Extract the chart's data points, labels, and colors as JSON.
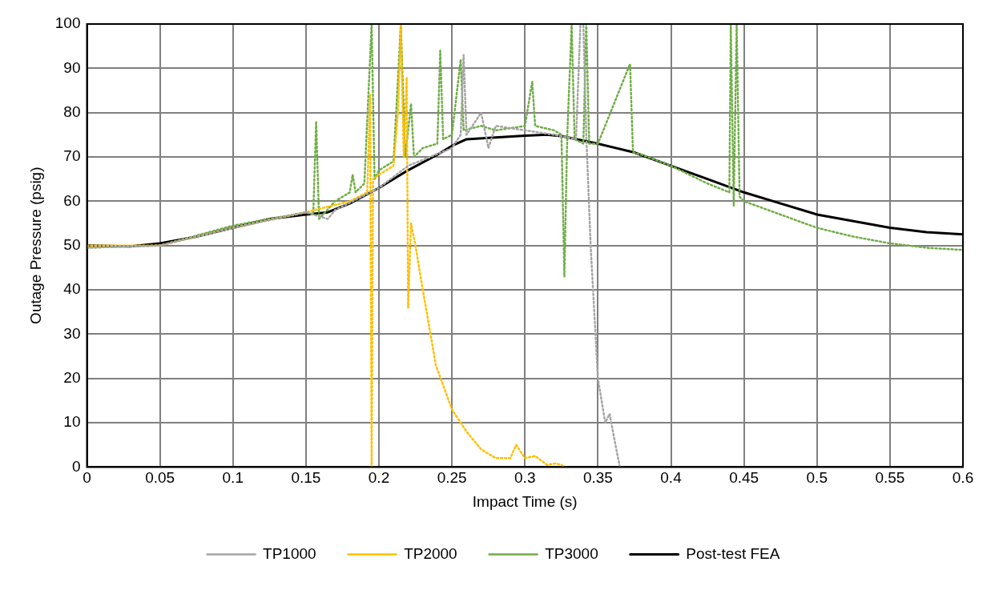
{
  "chart_data": {
    "type": "line",
    "xlabel": "Impact Time (s)",
    "ylabel": "Outage Pressure (psig)",
    "xlim": [
      0,
      0.6
    ],
    "xticks": [
      0,
      0.05,
      0.1,
      0.15,
      0.2,
      0.25,
      0.3,
      0.35,
      0.4,
      0.45,
      0.5,
      0.55,
      0.6
    ],
    "ylim": [
      0,
      100
    ],
    "yticks": [
      0,
      10,
      20,
      30,
      40,
      50,
      60,
      70,
      80,
      90,
      100
    ],
    "grid": true,
    "legend": "bottom",
    "marker": "none",
    "series": [
      {
        "name": "TP1000",
        "color": "#a5a5a5",
        "line_style": "dotted",
        "x": [
          0,
          0.05,
          0.1,
          0.15,
          0.165,
          0.17,
          0.2,
          0.22,
          0.25,
          0.256,
          0.258,
          0.26,
          0.27,
          0.275,
          0.28,
          0.3,
          0.32,
          0.335,
          0.338,
          0.34,
          0.342,
          0.345,
          0.35,
          0.355,
          0.358,
          0.362,
          0.365
        ],
        "values": [
          49.5,
          50,
          54,
          57.5,
          56,
          58,
          63,
          68,
          72,
          75,
          93,
          75,
          80,
          72,
          77,
          76,
          75,
          74,
          100,
          100,
          75,
          50,
          20,
          10,
          12,
          5,
          0
        ]
      },
      {
        "name": "TP2000",
        "color": "#ffc000",
        "line_style": "dotted",
        "x": [
          0,
          0.05,
          0.1,
          0.15,
          0.18,
          0.192,
          0.194,
          0.195,
          0.196,
          0.2,
          0.21,
          0.213,
          0.215,
          0.217,
          0.219,
          0.22,
          0.222,
          0.225,
          0.229,
          0.239,
          0.25,
          0.26,
          0.27,
          0.28,
          0.29,
          0.294,
          0.3,
          0.307,
          0.315,
          0.321,
          0.325,
          0.327
        ],
        "values": [
          50,
          50,
          54,
          57.5,
          60,
          62,
          84,
          0,
          65,
          66,
          68,
          80,
          100,
          70,
          88,
          36,
          55,
          50,
          42,
          23,
          13,
          8,
          4,
          2,
          2,
          5,
          2,
          2.5,
          0.5,
          0.8,
          0.5,
          0
        ]
      },
      {
        "name": "TP3000",
        "color": "#70ad47",
        "line_style": "dotted",
        "x": [
          0,
          0.05,
          0.1,
          0.15,
          0.155,
          0.157,
          0.159,
          0.17,
          0.18,
          0.182,
          0.184,
          0.19,
          0.195,
          0.197,
          0.2,
          0.21,
          0.215,
          0.218,
          0.222,
          0.224,
          0.23,
          0.24,
          0.242,
          0.244,
          0.25,
          0.256,
          0.258,
          0.27,
          0.28,
          0.3,
          0.305,
          0.307,
          0.32,
          0.325,
          0.327,
          0.329,
          0.332,
          0.334,
          0.34,
          0.342,
          0.344,
          0.35,
          0.372,
          0.374,
          0.38,
          0.4,
          0.425,
          0.44,
          0.441,
          0.443,
          0.445,
          0.447,
          0.45,
          0.475,
          0.5,
          0.525,
          0.55,
          0.575,
          0.6
        ],
        "values": [
          49.5,
          50,
          54.5,
          57.5,
          57,
          78,
          56,
          60,
          62,
          66,
          62,
          64,
          100,
          65,
          67,
          69,
          100,
          70,
          82,
          70,
          72,
          73,
          94,
          74,
          75,
          92,
          76,
          77,
          76,
          77,
          87,
          77,
          76,
          75,
          43,
          75,
          100,
          74,
          73,
          100,
          73,
          73,
          91,
          71,
          70.5,
          68,
          64,
          62,
          100,
          59,
          100,
          61,
          60,
          57,
          54,
          52,
          50.5,
          49.5,
          49
        ]
      },
      {
        "name": "Post-test FEA",
        "color": "#000000",
        "line_style": "solid",
        "x": [
          0,
          0.03,
          0.05,
          0.075,
          0.1,
          0.125,
          0.15,
          0.165,
          0.18,
          0.2,
          0.22,
          0.24,
          0.25,
          0.26,
          0.275,
          0.3,
          0.315,
          0.325,
          0.35,
          0.375,
          0.4,
          0.425,
          0.45,
          0.475,
          0.5,
          0.525,
          0.55,
          0.575,
          0.6
        ],
        "values": [
          50,
          49.8,
          50.5,
          52,
          54,
          56,
          57,
          57.5,
          59.5,
          63,
          67,
          70.5,
          72.5,
          74,
          74.3,
          74.8,
          75,
          74.7,
          73,
          71,
          68,
          65,
          62,
          59.5,
          57,
          55.5,
          54,
          53,
          52.5
        ]
      }
    ]
  }
}
